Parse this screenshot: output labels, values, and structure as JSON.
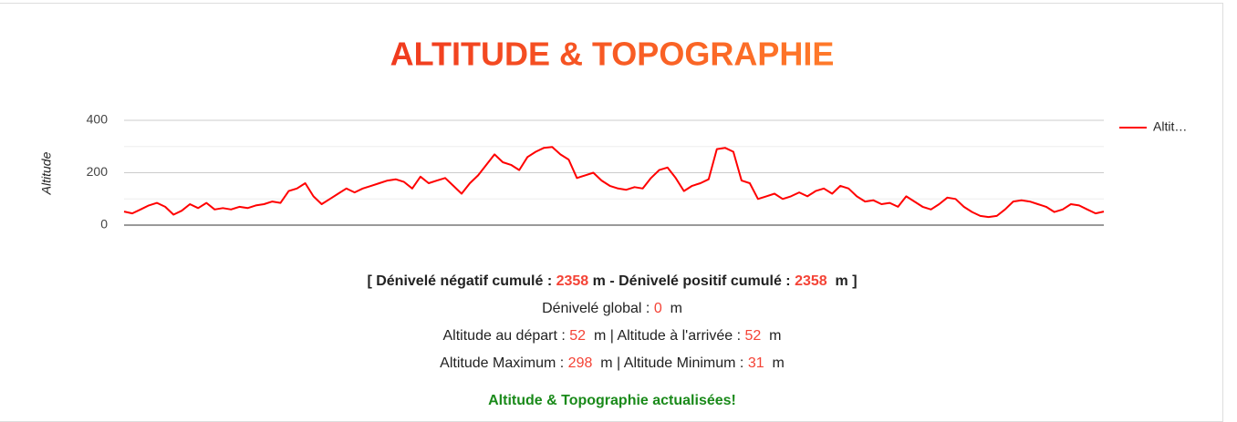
{
  "chart_data": {
    "type": "line",
    "title": "ALTITUDE & TOPOGRAPHIE",
    "y_label": "Altitude",
    "series": [
      {
        "name": "Altit…",
        "color": "#ff0000",
        "values": [
          52,
          45,
          60,
          75,
          85,
          70,
          40,
          55,
          80,
          65,
          85,
          60,
          65,
          60,
          70,
          65,
          75,
          80,
          90,
          85,
          130,
          140,
          160,
          110,
          80,
          100,
          120,
          140,
          125,
          140,
          150,
          160,
          170,
          175,
          165,
          140,
          185,
          160,
          170,
          180,
          150,
          120,
          160,
          190,
          230,
          270,
          240,
          230,
          210,
          260,
          280,
          295,
          298,
          270,
          250,
          180,
          190,
          200,
          170,
          150,
          140,
          135,
          145,
          140,
          180,
          210,
          220,
          180,
          130,
          150,
          160,
          175,
          290,
          295,
          280,
          170,
          160,
          100,
          110,
          120,
          100,
          110,
          125,
          110,
          130,
          140,
          120,
          150,
          140,
          110,
          90,
          95,
          80,
          85,
          70,
          110,
          90,
          70,
          60,
          80,
          105,
          100,
          70,
          50,
          35,
          31,
          35,
          60,
          90,
          95,
          90,
          80,
          70,
          50,
          60,
          80,
          75,
          60,
          45,
          52
        ]
      }
    ],
    "ylim": [
      0,
      400
    ],
    "yticks": [
      0,
      200,
      400
    ],
    "grid": true,
    "minor_grid": true,
    "legend": "right"
  },
  "stats": {
    "open": "[",
    "negatif_label": "Dénivelé négatif cumulé :",
    "negatif": 2358,
    "unit": "m",
    "sep": "-",
    "positif_label": "Dénivelé positif cumulé :",
    "positif": 2358,
    "close": "]",
    "global_label": "Dénivelé global :",
    "global": 0,
    "pipe": "|",
    "depart_label": "Altitude au départ :",
    "depart": 52,
    "arrivee_label": "Altitude à l'arrivée :",
    "arrivee": 52,
    "max_label": "Altitude Maximum :",
    "max": 298,
    "min_label": "Altitude Minimum :",
    "min": 31
  },
  "status": "Altitude & Topographie actualisées!"
}
